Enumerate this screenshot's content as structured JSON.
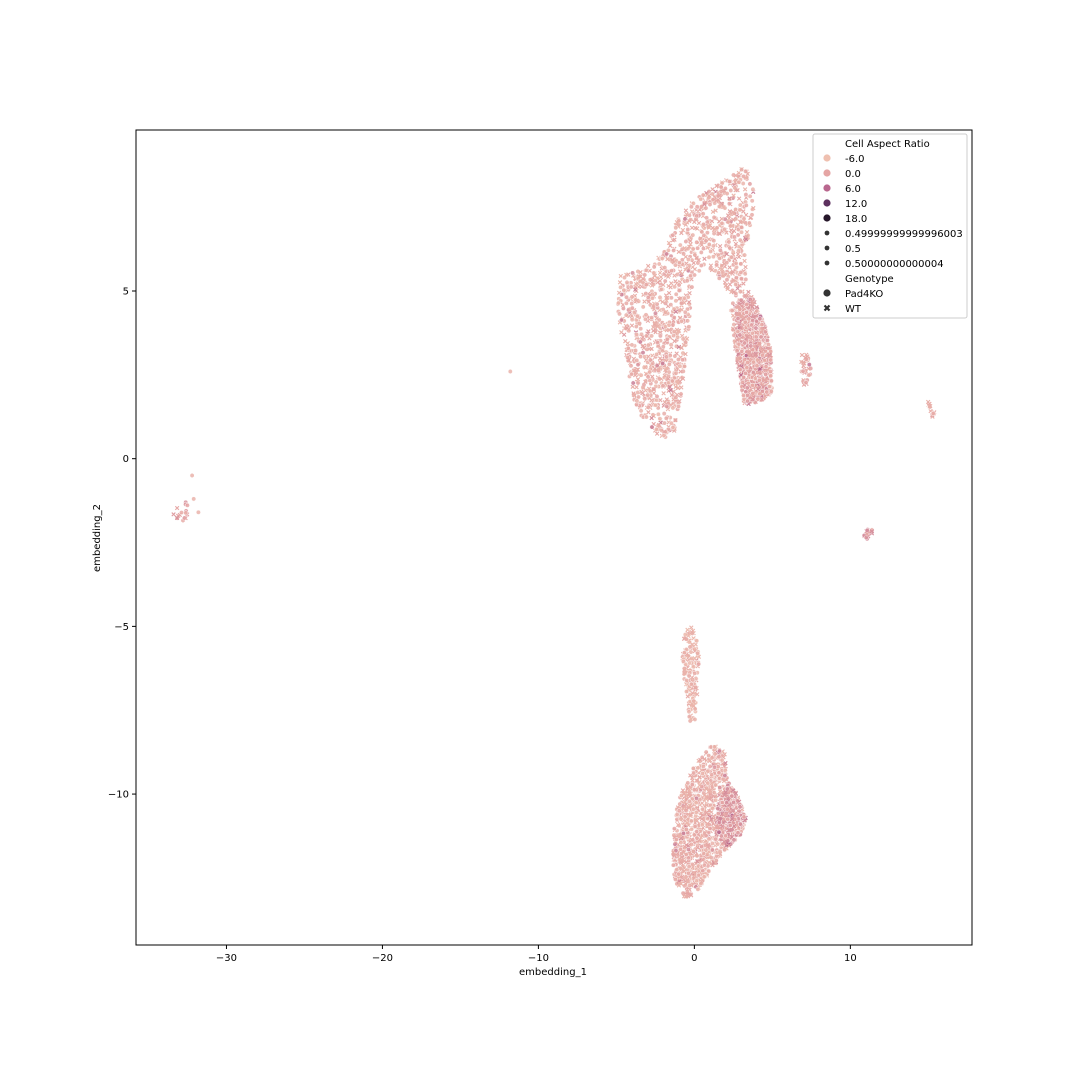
{
  "chart_data": {
    "type": "scatter",
    "xlabel": "embedding_1",
    "ylabel": "embedding_2",
    "xlim": [
      -35.8,
      17.8
    ],
    "ylim": [
      -14.5,
      9.8
    ],
    "x_ticks": [
      -30,
      -20,
      -10,
      0,
      10
    ],
    "x_tick_labels": [
      "−30",
      "−20",
      "−10",
      "0",
      "10"
    ],
    "y_ticks": [
      5,
      0,
      -5,
      -10
    ],
    "y_tick_labels": [
      "5",
      "0",
      "−5",
      "−10"
    ],
    "grid": false,
    "legend_location": "top-right",
    "hue": {
      "title": "Cell Aspect Ratio",
      "levels": [
        {
          "label": "-6.0",
          "value": -6.0,
          "color": "#efc0b0"
        },
        {
          "label": "0.0",
          "value": 0.0,
          "color": "#e5a5a4"
        },
        {
          "label": "6.0",
          "value": 6.0,
          "color": "#b9678e"
        },
        {
          "label": "12.0",
          "value": 12.0,
          "color": "#5d305e"
        },
        {
          "label": "18.0",
          "value": 18.0,
          "color": "#26172a"
        }
      ]
    },
    "size_levels": [
      "0.49999999999996003",
      "0.5",
      "0.50000000000004"
    ],
    "style": {
      "title": "Genotype",
      "levels": [
        {
          "label": "Pad4KO",
          "marker": "circle"
        },
        {
          "label": "WT",
          "marker": "x"
        }
      ]
    },
    "clusters": [
      {
        "shape": "polygon",
        "n": 1500,
        "hue_value": -2.0,
        "polygon": [
          [
            -4.9,
            5.6
          ],
          [
            -3.6,
            5.6
          ],
          [
            -2.5,
            5.9
          ],
          [
            -1.7,
            6.4
          ],
          [
            -1.0,
            7.2
          ],
          [
            0.0,
            7.7
          ],
          [
            1.2,
            8.1
          ],
          [
            2.3,
            8.5
          ],
          [
            3.3,
            8.7
          ],
          [
            3.8,
            8.0
          ],
          [
            3.8,
            7.0
          ],
          [
            3.2,
            6.2
          ],
          [
            3.5,
            5.0
          ],
          [
            4.4,
            4.2
          ],
          [
            4.9,
            3.2
          ],
          [
            5.0,
            2.0
          ],
          [
            4.3,
            1.7
          ],
          [
            3.2,
            1.6
          ],
          [
            2.7,
            3.0
          ],
          [
            2.3,
            4.5
          ],
          [
            1.9,
            5.2
          ],
          [
            1.0,
            5.6
          ],
          [
            0.2,
            5.5
          ],
          [
            -0.2,
            4.8
          ],
          [
            -0.4,
            3.5
          ],
          [
            -0.8,
            2.0
          ],
          [
            -1.3,
            0.8
          ],
          [
            -2.0,
            0.6
          ],
          [
            -2.9,
            0.9
          ],
          [
            -3.8,
            1.6
          ],
          [
            -4.4,
            3.0
          ],
          [
            -4.9,
            4.2
          ]
        ]
      },
      {
        "shape": "polygon",
        "n": 700,
        "hue_value": 0.0,
        "polygon": [
          [
            3.2,
            1.6
          ],
          [
            4.3,
            1.7
          ],
          [
            5.0,
            2.0
          ],
          [
            4.9,
            3.2
          ],
          [
            4.4,
            4.2
          ],
          [
            3.5,
            5.0
          ],
          [
            2.7,
            4.6
          ],
          [
            2.7,
            3.0
          ]
        ]
      },
      {
        "shape": "polygon",
        "n": 160,
        "hue_value": -3.0,
        "polygon": [
          [
            -0.6,
            -5.0
          ],
          [
            0.0,
            -5.0
          ],
          [
            0.3,
            -5.8
          ],
          [
            0.2,
            -7.0
          ],
          [
            0.1,
            -7.8
          ],
          [
            -0.3,
            -7.9
          ],
          [
            -0.5,
            -7.0
          ],
          [
            -0.8,
            -6.2
          ]
        ]
      },
      {
        "shape": "polygon",
        "n": 1100,
        "hue_value": -2.0,
        "polygon": [
          [
            0.6,
            -8.7
          ],
          [
            1.3,
            -8.5
          ],
          [
            2.0,
            -8.8
          ],
          [
            2.1,
            -9.5
          ],
          [
            2.7,
            -10.0
          ],
          [
            3.3,
            -10.7
          ],
          [
            3.0,
            -11.2
          ],
          [
            2.1,
            -11.6
          ],
          [
            1.0,
            -12.3
          ],
          [
            0.0,
            -13.0
          ],
          [
            -0.6,
            -13.1
          ],
          [
            -1.3,
            -12.6
          ],
          [
            -1.4,
            -11.5
          ],
          [
            -1.1,
            -10.3
          ],
          [
            -0.3,
            -9.4
          ]
        ]
      },
      {
        "shape": "polygon",
        "n": 250,
        "hue_value": 1.0,
        "polygon": [
          [
            1.5,
            -10.3
          ],
          [
            2.1,
            -9.7
          ],
          [
            2.7,
            -10.0
          ],
          [
            3.3,
            -10.7
          ],
          [
            3.0,
            -11.2
          ],
          [
            2.1,
            -11.6
          ],
          [
            1.4,
            -11.2
          ]
        ]
      },
      {
        "shape": "polygon",
        "n": 30,
        "hue_value": -1.0,
        "polygon": [
          [
            6.9,
            3.1
          ],
          [
            7.3,
            3.1
          ],
          [
            7.5,
            2.6
          ],
          [
            7.3,
            2.1
          ],
          [
            7.0,
            2.1
          ],
          [
            6.8,
            2.6
          ]
        ]
      },
      {
        "shape": "polygon",
        "n": 14,
        "hue_value": -3.0,
        "polygon": [
          [
            14.9,
            1.7
          ],
          [
            15.1,
            1.7
          ],
          [
            15.5,
            1.3
          ],
          [
            15.3,
            1.2
          ]
        ]
      },
      {
        "shape": "polygon",
        "n": 14,
        "hue_value": 1.0,
        "polygon": [
          [
            10.8,
            -2.3
          ],
          [
            11.2,
            -2.0
          ],
          [
            11.5,
            -2.2
          ],
          [
            11.1,
            -2.4
          ]
        ]
      },
      {
        "shape": "polygon",
        "n": 16,
        "hue_value": 0.0,
        "polygon": [
          [
            -33.5,
            -1.3
          ],
          [
            -32.5,
            -1.3
          ],
          [
            -32.4,
            -1.8
          ],
          [
            -33.0,
            -1.9
          ],
          [
            -33.5,
            -1.6
          ]
        ]
      },
      {
        "shape": "points",
        "hue_value": -3.0,
        "points": [
          [
            -32.2,
            -0.5
          ],
          [
            -32.1,
            -1.2
          ],
          [
            -31.8,
            -1.6
          ],
          [
            -11.8,
            2.6
          ]
        ]
      }
    ]
  }
}
